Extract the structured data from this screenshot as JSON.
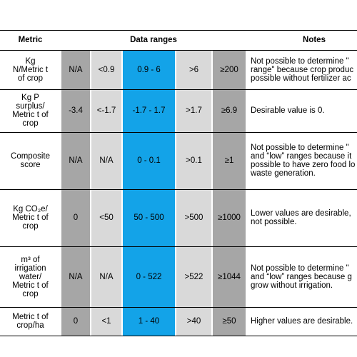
{
  "header": {
    "metric": "Metric",
    "ranges": "Data ranges",
    "notes": "Notes"
  },
  "rows": [
    {
      "metric": [
        "Kg",
        "N/Metric t",
        "of crop"
      ],
      "ranges": [
        "N/A",
        "<0.9",
        "0.9 - 6",
        ">6",
        "≥200"
      ],
      "notes": [
        "Not possible to determine \"",
        "range\" because crop produc",
        "possible without fertilizer ac"
      ]
    },
    {
      "metric": [
        "Kg P",
        "surplus/",
        "Metric t of",
        "crop"
      ],
      "ranges": [
        "-3.4",
        "<-1.7",
        "-1.7 - 1.7",
        ">1.7",
        "≥6.9"
      ],
      "notes": [
        "Desirable value is 0."
      ]
    },
    {
      "metric": [
        "Composite",
        "score"
      ],
      "ranges": [
        "N/A",
        "N/A",
        "0 - 0.1",
        ">0.1",
        "≥1"
      ],
      "notes": [
        "Not possible to determine \"",
        "and “low” ranges because it",
        "possible to have zero food lo",
        "waste generation."
      ]
    },
    {
      "metric": [
        "Kg CO₂e/",
        "Metric t of",
        "crop"
      ],
      "ranges": [
        "0",
        "<50",
        "50 - 500",
        ">500",
        "≥1000"
      ],
      "notes": [
        "Lower values are desirable,",
        "not possible."
      ]
    },
    {
      "metric": [
        "m³ of",
        "irrigation",
        "water/",
        "Metric t of",
        "crop"
      ],
      "ranges": [
        "N/A",
        "N/A",
        "0 - 522",
        ">522",
        "≥1044"
      ],
      "notes": [
        "Not possible to determine \"",
        "and “low” ranges because g",
        "grow without irrigation."
      ]
    },
    {
      "metric": [
        "Metric t of",
        "crop/ha"
      ],
      "ranges": [
        "0",
        "<1",
        "1 - 40",
        ">40",
        "≥50"
      ],
      "notes": [
        "Higher values are desirable."
      ]
    }
  ]
}
